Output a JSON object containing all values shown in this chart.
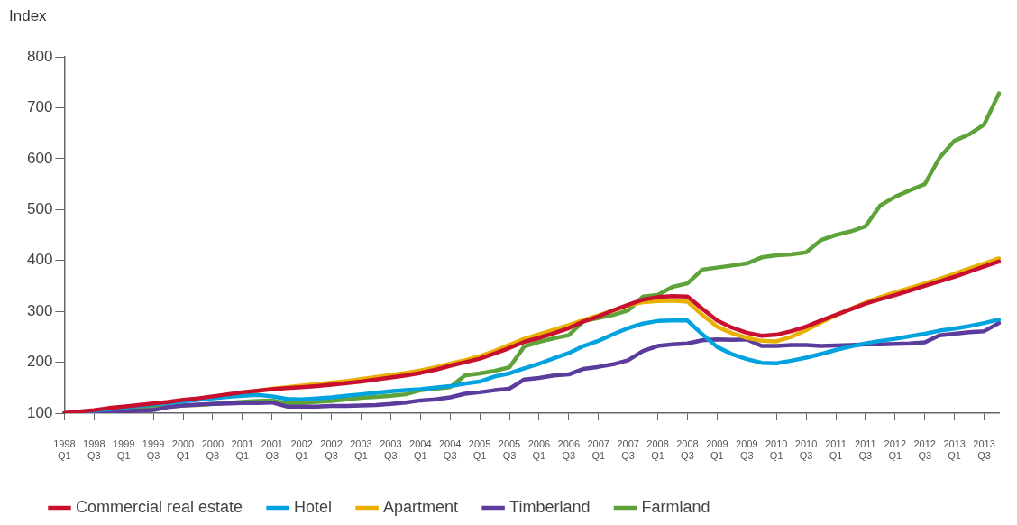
{
  "chart_data": {
    "type": "line",
    "ylabel": "Index",
    "ylim": [
      100,
      800
    ],
    "yticks": [
      100,
      200,
      300,
      400,
      500,
      600,
      700,
      800
    ],
    "grid": false,
    "legend": "bottom",
    "marker": "none",
    "line_style": "solid",
    "categories": [
      "1998 Q1",
      null,
      "1998 Q3",
      null,
      "1999 Q1",
      null,
      "1999 Q3",
      null,
      "2000 Q1",
      null,
      "2000 Q3",
      null,
      "2001 Q1",
      null,
      "2001 Q3",
      null,
      "2002 Q1",
      null,
      "2002 Q3",
      null,
      "2003 Q1",
      null,
      "2003 Q3",
      null,
      "2004 Q1",
      null,
      "2004 Q3",
      null,
      "2005 Q1",
      null,
      "2005 Q3",
      null,
      "2006 Q1",
      null,
      "2006 Q3",
      null,
      "2007 Q1",
      null,
      "2007 Q3",
      null,
      "2008 Q1",
      null,
      "2008 Q3",
      null,
      "2009 Q1",
      null,
      "2009 Q3",
      null,
      "2010 Q1",
      null,
      "2010 Q3",
      null,
      "2011 Q1",
      null,
      "2011 Q3",
      null,
      "2012 Q1",
      null,
      "2012 Q3",
      null,
      "2013 Q1",
      null,
      "2013 Q3",
      null
    ],
    "series": [
      {
        "name": "Commercial real estate",
        "color": "#c8102e",
        "values": [
          100,
          103,
          106,
          110,
          113,
          116,
          119,
          122,
          126,
          129,
          133,
          137,
          141,
          144,
          147,
          149,
          151,
          153,
          156,
          159,
          162,
          166,
          170,
          174,
          179,
          185,
          193,
          200,
          207,
          217,
          228,
          240,
          248,
          257,
          267,
          280,
          290,
          302,
          313,
          323,
          328,
          330,
          329,
          305,
          282,
          268,
          258,
          252,
          254,
          261,
          270,
          282,
          293,
          304,
          315,
          324,
          332,
          341,
          350,
          359,
          368,
          378,
          388,
          398
        ]
      },
      {
        "name": "Hotel",
        "color": "#00a3de",
        "values": [
          100,
          102,
          105,
          108,
          111,
          114,
          117,
          120,
          123,
          126,
          129,
          132,
          134,
          136,
          133,
          128,
          127,
          129,
          131,
          134,
          137,
          140,
          143,
          145,
          147,
          150,
          153,
          158,
          162,
          172,
          178,
          188,
          197,
          208,
          218,
          232,
          242,
          255,
          267,
          276,
          281,
          282,
          282,
          255,
          230,
          216,
          206,
          199,
          198,
          203,
          209,
          216,
          224,
          231,
          237,
          242,
          246,
          251,
          256,
          262,
          266,
          271,
          277,
          284
        ]
      },
      {
        "name": "Apartment",
        "color": "#e8b000",
        "values": [
          null,
          null,
          null,
          null,
          null,
          null,
          null,
          null,
          null,
          null,
          null,
          null,
          141,
          144,
          148,
          151,
          154,
          157,
          160,
          163,
          167,
          171,
          175,
          179,
          184,
          190,
          197,
          204,
          212,
          222,
          234,
          246,
          255,
          264,
          273,
          283,
          292,
          302,
          312,
          318,
          320,
          321,
          319,
          293,
          270,
          257,
          248,
          242,
          241,
          250,
          263,
          278,
          292,
          305,
          317,
          328,
          337,
          346,
          355,
          364,
          374,
          384,
          394,
          404
        ]
      },
      {
        "name": "Timberland",
        "color": "#5b3b9b",
        "values": [
          100,
          101,
          102,
          103,
          104,
          105,
          106,
          112,
          115,
          117,
          118,
          119,
          120,
          120,
          121,
          113,
          113,
          113,
          114,
          114,
          115,
          116,
          118,
          121,
          125,
          127,
          131,
          138,
          141,
          145,
          148,
          166,
          169,
          174,
          176,
          187,
          191,
          196,
          204,
          222,
          232,
          235,
          237,
          243,
          245,
          244,
          245,
          232,
          232,
          234,
          234,
          232,
          233,
          234,
          235,
          235,
          236,
          237,
          239,
          253,
          256,
          259,
          261,
          277
        ]
      },
      {
        "name": "Farmland",
        "color": "#5ea33a",
        "values": [
          null,
          null,
          null,
          null,
          107,
          109,
          111,
          113,
          115,
          116,
          118,
          120,
          122,
          124,
          125,
          119,
          120,
          122,
          124,
          127,
          130,
          132,
          134,
          137,
          145,
          148,
          151,
          174,
          178,
          183,
          190,
          231,
          240,
          247,
          253,
          281,
          287,
          293,
          302,
          329,
          332,
          348,
          355,
          382,
          386,
          390,
          394,
          406,
          410,
          412,
          416,
          440,
          450,
          457,
          467,
          508,
          525,
          538,
          550,
          602,
          635,
          648,
          667,
          728
        ]
      }
    ]
  }
}
